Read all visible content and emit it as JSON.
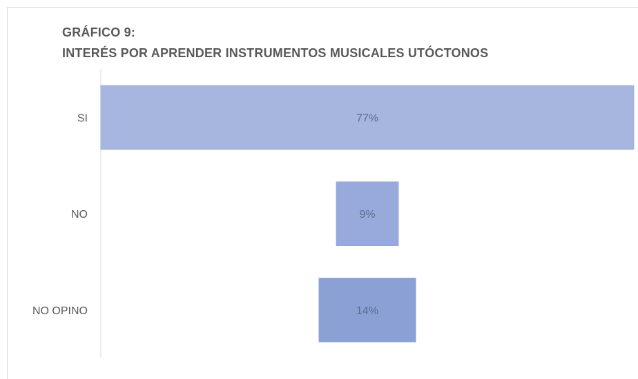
{
  "chart_data": {
    "type": "bar",
    "orientation": "horizontal",
    "title_line1": "GRÁFICO 9:",
    "title_line2": "INTERÉS POR APRENDER INSTRUMENTOS MUSICALES UTÓCTONOS",
    "categories": [
      "SI",
      "NO",
      "NO OPINO"
    ],
    "values": [
      77,
      9,
      14
    ],
    "data_labels": [
      "77%",
      "9%",
      "14%"
    ],
    "colors": [
      "#a7b6df",
      "#98aadc",
      "#8ba1d6"
    ],
    "xlabel": "",
    "ylabel": "",
    "grid": false,
    "legend": "none"
  }
}
